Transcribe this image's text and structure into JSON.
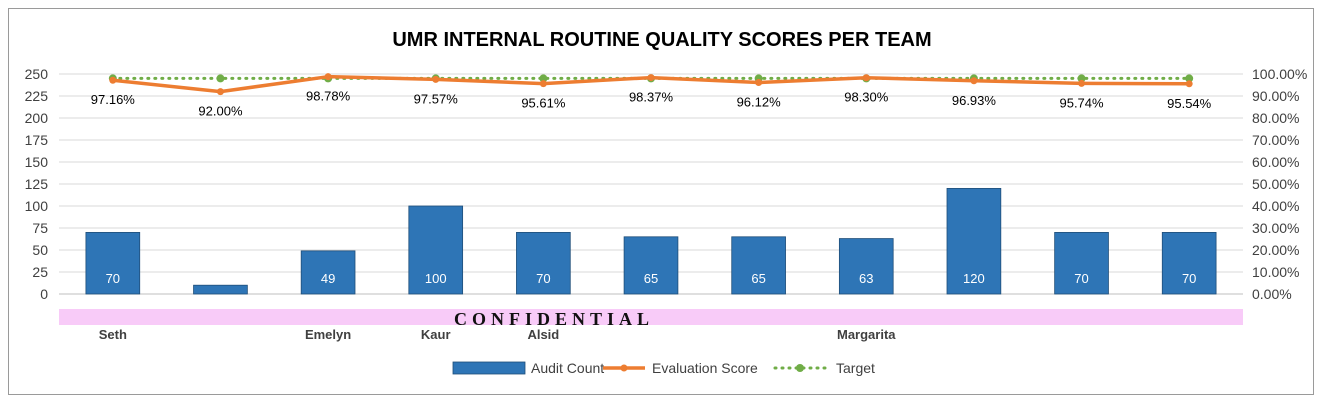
{
  "chart_data": {
    "type": "bar",
    "title": "UMR INTERNAL ROUTINE QUALITY SCORES PER TEAM",
    "categories": [
      [
        "Seth"
      ],
      [
        ""
      ],
      [
        "Emelyn"
      ],
      [
        "Kaur"
      ],
      [
        "Alsid"
      ],
      [
        ""
      ],
      [
        ""
      ],
      [
        "Margarita"
      ],
      [
        ""
      ],
      [
        ""
      ],
      [
        ""
      ]
    ],
    "series": [
      {
        "name": "Audit Count",
        "type": "bar",
        "axis": "left",
        "color": "#2E75B6",
        "values": [
          70,
          10,
          49,
          100,
          70,
          65,
          65,
          63,
          120,
          70,
          70
        ],
        "labels": [
          "70",
          "",
          "49",
          "100",
          "70",
          "65",
          "65",
          "63",
          "120",
          "70",
          "70"
        ]
      },
      {
        "name": "Evaluation Score",
        "type": "line",
        "axis": "right",
        "color": "#ED7D31",
        "values": [
          97.16,
          92.0,
          98.78,
          97.57,
          95.61,
          98.37,
          96.12,
          98.3,
          96.93,
          95.74,
          95.54
        ],
        "labels": [
          "97.16%",
          "92.00%",
          "98.78%",
          "97.57%",
          "95.61%",
          "98.37%",
          "96.12%",
          "98.30%",
          "96.93%",
          "95.74%",
          "95.54%"
        ]
      },
      {
        "name": "Target",
        "type": "line-dotted",
        "axis": "right",
        "color": "#70AD47",
        "values": [
          98,
          98,
          98,
          98,
          98,
          98,
          98,
          98,
          98,
          98,
          98
        ]
      }
    ],
    "y_left": {
      "min": 0,
      "max": 250,
      "ticks": [
        "0",
        "25",
        "50",
        "75",
        "100",
        "125",
        "150",
        "175",
        "200",
        "225",
        "250"
      ]
    },
    "y_right": {
      "min": 0,
      "max": 100,
      "ticks": [
        "0.00%",
        "10.00%",
        "20.00%",
        "30.00%",
        "40.00%",
        "50.00%",
        "60.00%",
        "70.00%",
        "80.00%",
        "90.00%",
        "100.00%"
      ]
    },
    "grid": true,
    "legend_position": "bottom",
    "watermark": "CONFIDENTIAL"
  }
}
